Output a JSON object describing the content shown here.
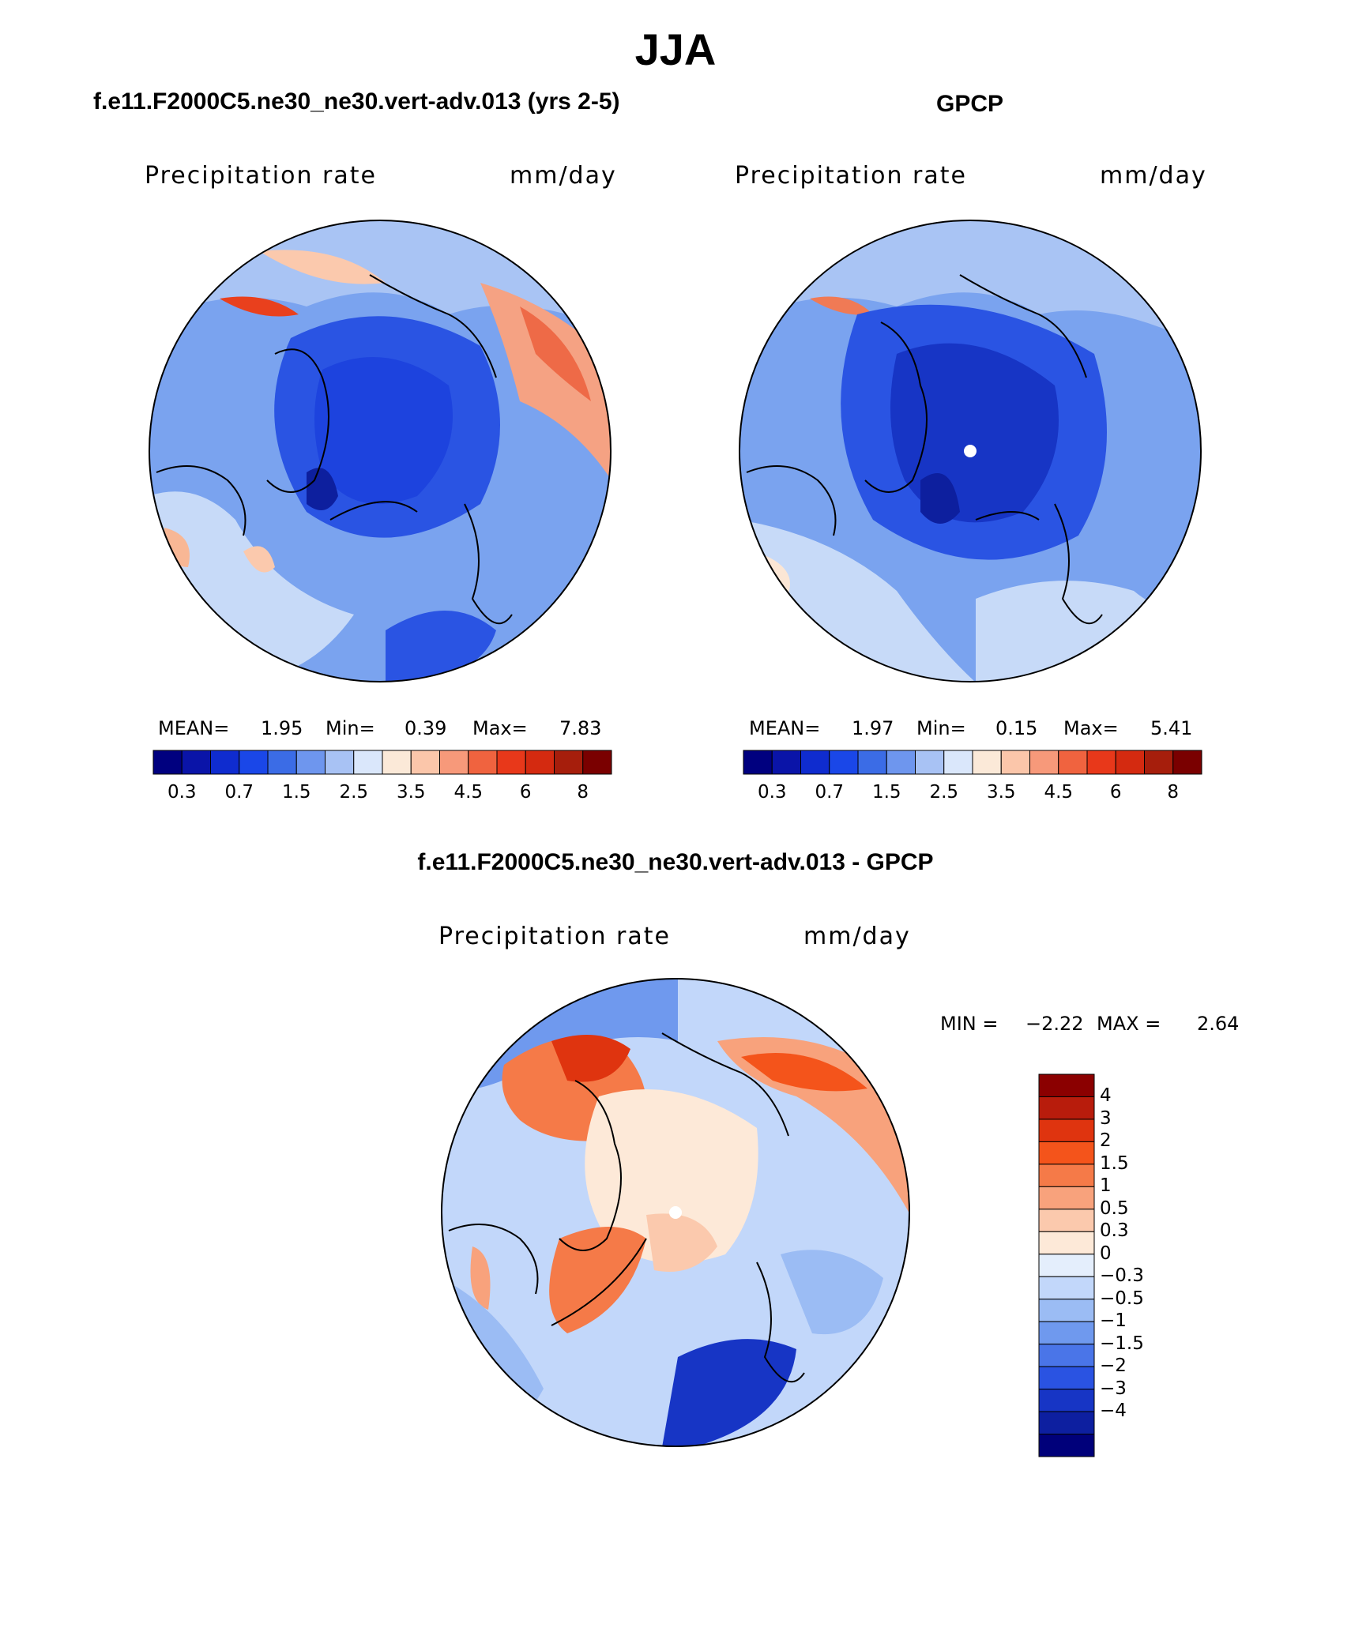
{
  "title": "JJA",
  "panels": [
    {
      "title": "f.e11.F2000C5.ne30_ne30.vert-adv.013 (yrs 2-5)",
      "left_label": "Precipitation rate",
      "right_label": "mm/day",
      "stats": {
        "mean_label": "MEAN=",
        "mean": "1.95",
        "min_label": "Min=",
        "min": "0.39",
        "max_label": "Max=",
        "max": "7.83"
      }
    },
    {
      "title": "GPCP",
      "left_label": "Precipitation rate",
      "right_label": "mm/day",
      "stats": {
        "mean_label": "MEAN=",
        "mean": "1.97",
        "min_label": "Min=",
        "min": "0.15",
        "max_label": "Max=",
        "max": "5.41"
      }
    },
    {
      "title": "f.e11.F2000C5.ne30_ne30.vert-adv.013 - GPCP",
      "left_label": "Precipitation rate",
      "right_label": "mm/day",
      "stats": {
        "min_label": "MIN =",
        "min": "−2.22",
        "max_label": "MAX =",
        "max": "2.64"
      }
    }
  ],
  "precip_colorbar": {
    "colors": [
      "#00007f",
      "#0a14a8",
      "#0f2ccf",
      "#1a47e8",
      "#3b6ce6",
      "#6e96ee",
      "#a8c2f4",
      "#dae7fb",
      "#fbe9d8",
      "#fbc6aa",
      "#f7997a",
      "#f0633f",
      "#e8381a",
      "#d42a10",
      "#a61e0c",
      "#7a0000"
    ],
    "tick_labels": [
      "0.3",
      "0.7",
      "1.5",
      "2.5",
      "3.5",
      "4.5",
      "6",
      "8"
    ]
  },
  "diff_colorbar": {
    "colors": [
      "#8b0000",
      "#b81c0c",
      "#df340f",
      "#f4541b",
      "#f57a48",
      "#f8a27c",
      "#fbc9ad",
      "#fde9d8",
      "#e4eefc",
      "#c2d7fa",
      "#9bbcf4",
      "#6f99ee",
      "#4a75e8",
      "#2a53e2",
      "#1735c5",
      "#0d1fa0",
      "#00007a"
    ],
    "tick_labels": [
      "4",
      "3",
      "2",
      "1.5",
      "1",
      "0.5",
      "0.3",
      "0",
      "−0.3",
      "−0.5",
      "−1",
      "−1.5",
      "−2",
      "−3",
      "−4"
    ]
  }
}
